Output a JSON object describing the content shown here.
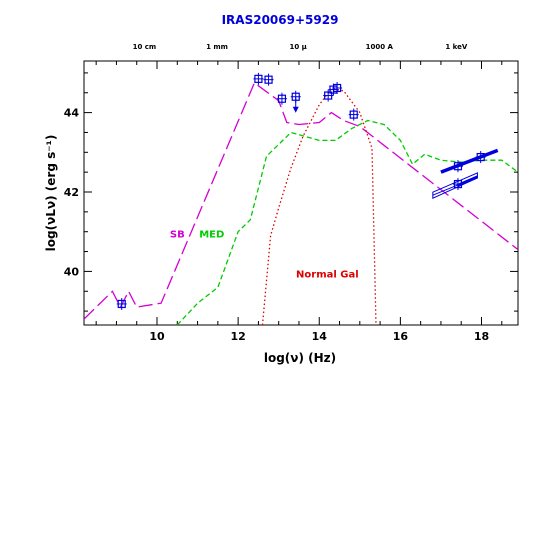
{
  "chart_data": {
    "type": "scatter",
    "title": "IRAS20069+5929",
    "xlabel": "log(ν) (Hz)",
    "ylabel": "log(νLν) (erg s⁻¹)",
    "xlim": [
      8.2,
      18.9
    ],
    "ylim": [
      38.65,
      45.3
    ],
    "x_ticks": [
      10,
      12,
      14,
      16,
      18
    ],
    "x_tick_labels": [
      "10",
      "12",
      "14",
      "16",
      "18"
    ],
    "y_ticks": [
      40,
      42,
      44
    ],
    "y_tick_labels": [
      "40",
      "42",
      "44"
    ],
    "top_axis_labels": [
      {
        "x": 9.69,
        "label": "10 cm"
      },
      {
        "x": 11.48,
        "label": "1 mm"
      },
      {
        "x": 13.48,
        "label": "10 μ"
      },
      {
        "x": 15.48,
        "label": "1000 A"
      },
      {
        "x": 17.38,
        "label": "1 keV"
      }
    ],
    "series": [
      {
        "name": "SB",
        "color": "#d400d4",
        "style": "long-dash",
        "x": [
          8.2,
          8.9,
          9.1,
          9.3,
          9.5,
          10.1,
          12.4,
          12.6,
          13.0,
          13.2,
          13.5,
          14.0,
          14.3,
          14.6,
          15.0,
          18.9
        ],
        "y": [
          38.8,
          39.5,
          39.1,
          39.5,
          39.1,
          39.2,
          44.75,
          44.6,
          44.3,
          43.75,
          43.7,
          43.75,
          44.0,
          43.8,
          43.65,
          40.55
        ]
      },
      {
        "name": "MED",
        "color": "#00cc00",
        "style": "dash",
        "x": [
          10.5,
          11.0,
          11.5,
          12.0,
          12.3,
          12.7,
          13.3,
          14.0,
          14.4,
          14.8,
          15.2,
          15.6,
          16.0,
          16.3,
          16.6,
          17.0,
          17.5,
          18.0,
          18.5,
          18.9
        ],
        "y": [
          38.65,
          39.2,
          39.6,
          41.0,
          41.3,
          42.9,
          43.5,
          43.3,
          43.3,
          43.6,
          43.8,
          43.7,
          43.3,
          42.7,
          42.95,
          42.8,
          42.75,
          42.8,
          42.8,
          42.5
        ]
      },
      {
        "name": "Normal Gal",
        "color": "#dd0000",
        "style": "dotted",
        "x": [
          12.6,
          12.8,
          13.0,
          13.3,
          13.6,
          14.0,
          14.3,
          14.6,
          15.0,
          15.3,
          15.4
        ],
        "y": [
          38.65,
          40.9,
          41.6,
          42.6,
          43.4,
          44.2,
          44.6,
          44.55,
          44.0,
          43.1,
          38.65
        ]
      }
    ],
    "data_points": {
      "name": "IRAS20069+5929",
      "color": "#0000dd",
      "x": [
        9.13,
        12.5,
        12.75,
        13.08,
        13.42,
        14.22,
        14.35,
        14.44,
        14.85,
        17.42,
        17.42,
        17.98
      ],
      "y": [
        39.18,
        44.85,
        44.83,
        44.35,
        44.4,
        44.43,
        44.58,
        44.62,
        43.95,
        42.2,
        42.65,
        42.88
      ]
    },
    "xray_spectra": [
      {
        "x": [
          17.0,
          18.4
        ],
        "y": [
          42.5,
          43.05
        ],
        "color": "#0000dd"
      },
      {
        "x": [
          16.8,
          17.9
        ],
        "y": [
          41.92,
          42.38
        ],
        "color": "#0000dd"
      }
    ],
    "annotations": [
      {
        "text": "SB",
        "x": 10.5,
        "y": 40.95,
        "color": "#d400d4"
      },
      {
        "text": "MED",
        "x": 11.35,
        "y": 40.95,
        "color": "#00cc00"
      },
      {
        "text": "Normal Gal",
        "x": 14.2,
        "y": 39.95,
        "color": "#dd0000"
      }
    ],
    "grid": false,
    "legend": "none"
  }
}
